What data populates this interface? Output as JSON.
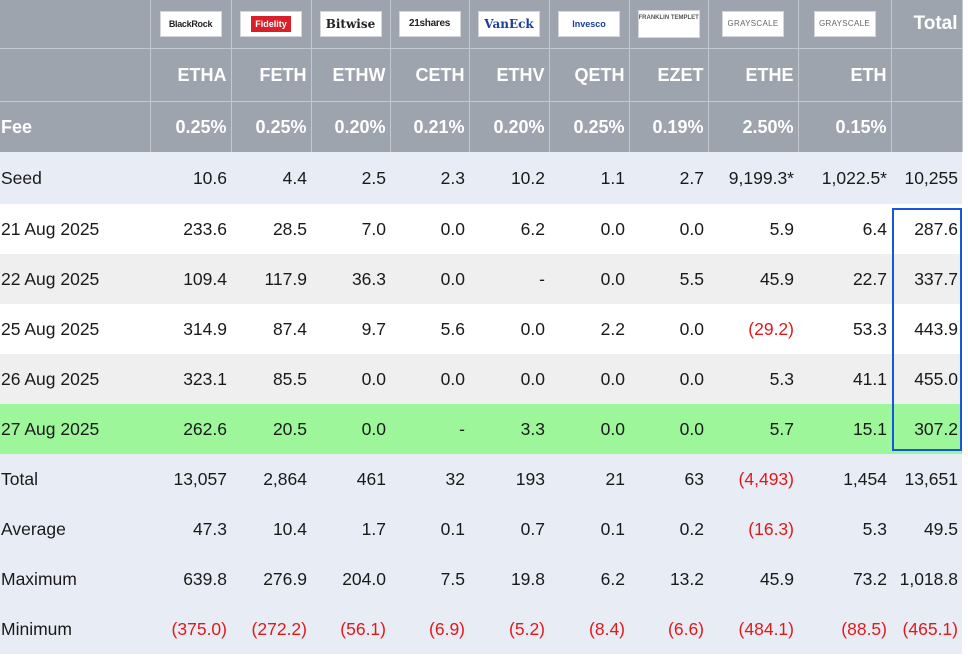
{
  "issuers": [
    {
      "name": "BlackRock",
      "logo": "blackrock-logo",
      "class": "logo-blackrock"
    },
    {
      "name": "Fidelity",
      "logo": "fidelity-logo",
      "class": "logo-fidelity"
    },
    {
      "name": "Bitwise",
      "logo": "bitwise-logo",
      "class": "logo-bitwise"
    },
    {
      "name": "21shares",
      "logo": "21shares-logo",
      "class": "logo-21"
    },
    {
      "name": "VanEck",
      "logo": "vaneck-logo",
      "class": "logo-vaneck"
    },
    {
      "name": "Invesco",
      "logo": "invesco-logo",
      "class": "logo-invesco"
    },
    {
      "name": "FRANKLIN TEMPLETON",
      "logo": "franklin-templeton-logo",
      "class": "logo-franklin"
    },
    {
      "name": "GRAYSCALE",
      "logo": "grayscale-logo",
      "class": "logo-grayscale"
    },
    {
      "name": "GRAYSCALE",
      "logo": "grayscale-logo",
      "class": "logo-grayscale"
    }
  ],
  "total_header": "Total",
  "tickers": [
    "ETHA",
    "FETH",
    "ETHW",
    "CETH",
    "ETHV",
    "QETH",
    "EZET",
    "ETHE",
    "ETH"
  ],
  "fee_label": "Fee",
  "fees": [
    "0.25%",
    "0.25%",
    "0.20%",
    "0.21%",
    "0.20%",
    "0.25%",
    "0.19%",
    "2.50%",
    "0.15%"
  ],
  "rows": [
    {
      "label": "Seed",
      "style": "r-light",
      "cells": [
        "10.6",
        "4.4",
        "2.5",
        "2.3",
        "10.2",
        "1.1",
        "2.7",
        "9,199.3*",
        "1,022.5*",
        "10,255"
      ]
    },
    {
      "label": "21 Aug 2025",
      "style": "r-white",
      "cells": [
        "233.6",
        "28.5",
        "7.0",
        "0.0",
        "6.2",
        "0.0",
        "0.0",
        "5.9",
        "6.4",
        "287.6"
      ]
    },
    {
      "label": "22 Aug 2025",
      "style": "r-grey",
      "cells": [
        "109.4",
        "117.9",
        "36.3",
        "0.0",
        "-",
        "0.0",
        "5.5",
        "45.9",
        "22.7",
        "337.7"
      ]
    },
    {
      "label": "25 Aug 2025",
      "style": "r-white",
      "cells": [
        "314.9",
        "87.4",
        "9.7",
        "5.6",
        "0.0",
        "2.2",
        "0.0",
        "(29.2)",
        "53.3",
        "443.9"
      ]
    },
    {
      "label": "26 Aug 2025",
      "style": "r-grey",
      "cells": [
        "323.1",
        "85.5",
        "0.0",
        "0.0",
        "0.0",
        "0.0",
        "0.0",
        "5.3",
        "41.1",
        "455.0"
      ]
    },
    {
      "label": "27 Aug 2025",
      "style": "r-green",
      "cells": [
        "262.6",
        "20.5",
        "0.0",
        "-",
        "3.3",
        "0.0",
        "0.0",
        "5.7",
        "15.1",
        "307.2"
      ]
    },
    {
      "label": "Total",
      "style": "r-light",
      "cells": [
        "13,057",
        "2,864",
        "461",
        "32",
        "193",
        "21",
        "63",
        "(4,493)",
        "1,454",
        "13,651"
      ]
    },
    {
      "label": "Average",
      "style": "r-light",
      "cells": [
        "47.3",
        "10.4",
        "1.7",
        "0.1",
        "0.7",
        "0.1",
        "0.2",
        "(16.3)",
        "5.3",
        "49.5"
      ]
    },
    {
      "label": "Maximum",
      "style": "r-light",
      "cells": [
        "639.8",
        "276.9",
        "204.0",
        "7.5",
        "19.8",
        "6.2",
        "13.2",
        "45.9",
        "73.2",
        "1,018.8"
      ]
    },
    {
      "label": "Minimum",
      "style": "r-light",
      "cells": [
        "(375.0)",
        "(272.2)",
        "(56.1)",
        "(6.9)",
        "(5.2)",
        "(8.4)",
        "(6.6)",
        "(484.1)",
        "(88.5)",
        "(465.1)"
      ]
    }
  ],
  "colors": {
    "header_bg": "#9ea4ad",
    "negative": "#e0191b",
    "highlight_row": "#9df79a",
    "highlight_box": "#1557e0"
  }
}
